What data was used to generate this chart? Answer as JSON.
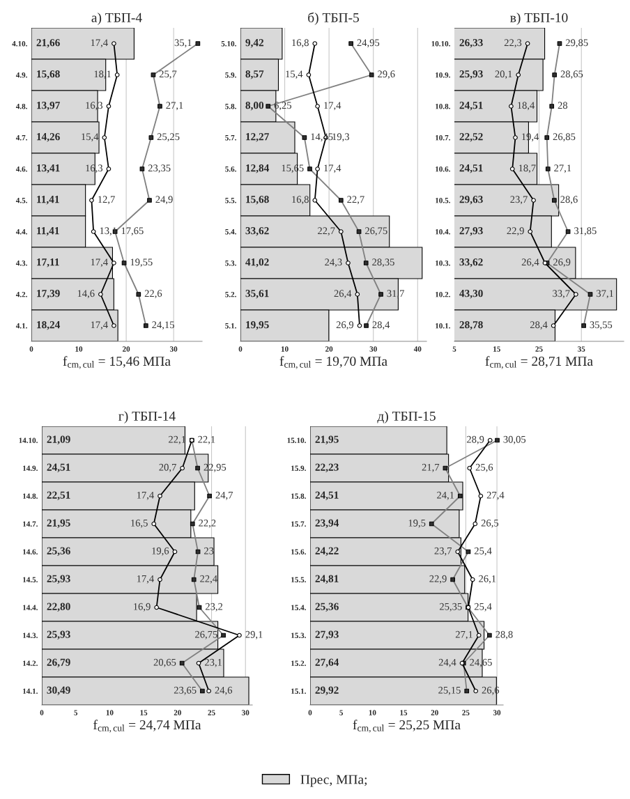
{
  "chart_data": [
    {
      "type": "bar",
      "orientation": "horizontal",
      "title": "а) ТБП-4",
      "xlabel": "f$_{cm,cul}$ = 15,46 МПа",
      "categories": [
        "4.10.",
        "4.9.",
        "4.8.",
        "4.7.",
        "4.6.",
        "4.5.",
        "4.4.",
        "4.3.",
        "4.2.",
        "4.1."
      ],
      "xlim": [
        0,
        36
      ],
      "xticks": [
        0,
        10,
        20,
        30
      ],
      "grid": "x",
      "series": [
        {
          "color": "#d9d9d9",
          "values": [
            21.66,
            15.68,
            13.97,
            14.26,
            13.41,
            11.41,
            11.41,
            17.11,
            17.39,
            18.24
          ],
          "value_labels": [
            "21,66",
            "15,68",
            "13,97",
            "14,26",
            "13,41",
            "11,41",
            "11,41",
            "17,11",
            "17,39",
            "18,24"
          ]
        },
        {
          "type": "line",
          "color": "#808080",
          "marker": "square",
          "values": [
            35.1,
            25.7,
            27.1,
            25.25,
            23.35,
            24.9,
            17.65,
            19.55,
            22.6,
            24.15
          ],
          "value_labels": [
            "35,1",
            "25,7",
            "27,1",
            "25,25",
            "23,35",
            "24,9",
            "17,65",
            "19,55",
            "22,6",
            "24,15"
          ]
        },
        {
          "type": "line",
          "color": "#000000",
          "marker": "circle",
          "values": [
            17.4,
            18.1,
            16.3,
            15.4,
            16.3,
            12.7,
            13.1,
            17.4,
            14.6,
            17.4
          ],
          "value_labels": [
            "17,4",
            "18,1",
            "16,3",
            "15,4",
            "16,3",
            "12,7",
            "13,1",
            "17,4",
            "14,6",
            "17,4"
          ]
        }
      ]
    },
    {
      "type": "bar",
      "orientation": "horizontal",
      "title": "б) ТБП-5",
      "xlabel": "f$_{cm,cul}$ = 19,70 МПа",
      "categories": [
        "5.10.",
        "5.9.",
        "5.8.",
        "5.7.",
        "5.6.",
        "5.5.",
        "5.4.",
        "5.3.",
        "5.2.",
        "5.1."
      ],
      "xlim": [
        0,
        42
      ],
      "xticks": [
        0,
        10,
        20,
        30,
        40
      ],
      "grid": "x",
      "series": [
        {
          "color": "#d9d9d9",
          "values": [
            9.42,
            8.57,
            8.0,
            12.27,
            12.84,
            15.68,
            33.62,
            41.02,
            35.61,
            19.95
          ],
          "value_labels": [
            "9,42",
            "8,57",
            "8,00",
            "12,27",
            "12,84",
            "15,68",
            "33,62",
            "41,02",
            "35,61",
            "19,95"
          ]
        },
        {
          "type": "line",
          "color": "#808080",
          "marker": "square",
          "values": [
            24.95,
            29.6,
            6.25,
            14.45,
            15.65,
            22.7,
            26.75,
            28.35,
            31.7,
            28.4
          ],
          "value_labels": [
            "24,95",
            "29,6",
            "6,25",
            "14,45",
            "15,65",
            "22,7",
            "26,75",
            "28,35",
            "31,7",
            "28,4"
          ]
        },
        {
          "type": "line",
          "color": "#000000",
          "marker": "circle",
          "values": [
            16.8,
            15.4,
            17.4,
            19.3,
            17.4,
            16.8,
            22.7,
            24.3,
            26.4,
            26.9
          ],
          "value_labels": [
            "16,8",
            "15,4",
            "17,4",
            "19,3",
            "17,4",
            "16,8",
            "22,7",
            "24,3",
            "26,4",
            "26,9"
          ]
        }
      ]
    },
    {
      "type": "bar",
      "orientation": "horizontal",
      "title": "в) ТБП-10",
      "xlabel": "f$_{cm,cul}$ = 28,71 МПа",
      "categories": [
        "10.10.",
        "10.9.",
        "10.8.",
        "10.7.",
        "10.6.",
        "10.5.",
        "10.4.",
        "10.3.",
        "10.2.",
        "10.1."
      ],
      "xlim": [
        5,
        45
      ],
      "xticks": [
        5,
        15,
        25,
        35
      ],
      "grid": "x",
      "series": [
        {
          "color": "#d9d9d9",
          "values": [
            26.33,
            25.93,
            24.51,
            22.52,
            24.51,
            29.63,
            27.93,
            33.62,
            43.3,
            28.78
          ],
          "value_labels": [
            "26,33",
            "25,93",
            "24,51",
            "22,52",
            "24,51",
            "29,63",
            "27,93",
            "33,62",
            "43,30",
            "28,78"
          ]
        },
        {
          "type": "line",
          "color": "#808080",
          "marker": "square",
          "values": [
            29.85,
            28.65,
            28,
            26.85,
            27.1,
            28.6,
            31.85,
            26.9,
            37.1,
            35.55
          ],
          "value_labels": [
            "29,85",
            "28,65",
            "28",
            "26,85",
            "27,1",
            "28,6",
            "31,85",
            "26,9",
            "37,1",
            "35,55"
          ]
        },
        {
          "type": "line",
          "color": "#000000",
          "marker": "circle",
          "values": [
            22.3,
            20.1,
            18.4,
            19.4,
            18.7,
            23.7,
            22.9,
            26.4,
            33.7,
            28.4
          ],
          "value_labels": [
            "22,3",
            "20,1",
            "18,4",
            "19,4",
            "18,7",
            "23,7",
            "22,9",
            "26,4",
            "33,7",
            "28,4"
          ]
        }
      ]
    },
    {
      "type": "bar",
      "orientation": "horizontal",
      "title": "г) ТБП-14",
      "xlabel": "f$_{cm,cul}$ = 24,74 МПа",
      "categories": [
        "14.10.",
        "14.9.",
        "14.8.",
        "14.7.",
        "14.6.",
        "14.5.",
        "14.4.",
        "14.3.",
        "14.2.",
        "14.1."
      ],
      "xlim": [
        0,
        31
      ],
      "xticks": [
        0,
        5,
        10,
        15,
        20,
        25,
        30
      ],
      "grid": "x",
      "series": [
        {
          "color": "#d9d9d9",
          "values": [
            21.09,
            24.51,
            22.51,
            21.95,
            25.36,
            25.93,
            22.8,
            25.93,
            26.79,
            30.49
          ],
          "value_labels": [
            "21,09",
            "24,51",
            "22,51",
            "21,95",
            "25,36",
            "25,93",
            "22,80",
            "25,93",
            "26,79",
            "30,49"
          ]
        },
        {
          "type": "line",
          "color": "#808080",
          "marker": "square",
          "values": [
            22.1,
            22.95,
            24.7,
            22.2,
            23,
            22.4,
            23.2,
            26.75,
            20.65,
            23.65
          ],
          "value_labels": [
            "22,1",
            "22,95",
            "24,7",
            "22,2",
            "23",
            "22,4",
            "23,2",
            "26,75",
            "20,65",
            "23,65"
          ]
        },
        {
          "type": "line",
          "color": "#000000",
          "marker": "circle",
          "values": [
            22.1,
            20.7,
            17.4,
            16.5,
            19.6,
            17.4,
            16.9,
            29.1,
            23.1,
            24.6
          ],
          "value_labels": [
            "22,1",
            "20,7",
            "17,4",
            "16,5",
            "19,6",
            "17,4",
            "16,9",
            "29,1",
            "23,1",
            "24,6"
          ]
        }
      ]
    },
    {
      "type": "bar",
      "orientation": "horizontal",
      "title": "д) ТБП-15",
      "xlabel": "f$_{cm,cul}$ = 25,25 МПа",
      "categories": [
        "15.10.",
        "15.9.",
        "15.8.",
        "15.7.",
        "15.6.",
        "15.5.",
        "15.4.",
        "15.3.",
        "15.2.",
        "15.1."
      ],
      "xlim": [
        0,
        31
      ],
      "xticks": [
        0,
        5,
        10,
        15,
        20,
        25,
        30
      ],
      "grid": "x",
      "legend": "bottom",
      "series": [
        {
          "name": "Прес, МПа;",
          "color": "#d9d9d9",
          "values": [
            21.95,
            22.23,
            24.51,
            23.94,
            24.22,
            24.81,
            25.36,
            27.93,
            27.64,
            29.92
          ],
          "value_labels": [
            "21,95",
            "22,23",
            "24,51",
            "23,94",
            "24,22",
            "24,81",
            "25,36",
            "27,93",
            "27,64",
            "29,92"
          ]
        },
        {
          "type": "line",
          "color": "#808080",
          "marker": "square",
          "values": [
            30.05,
            21.7,
            24.1,
            19.5,
            25.4,
            22.9,
            25.35,
            28.8,
            24.65,
            25.15
          ],
          "value_labels": [
            "30,05",
            "21,7",
            "24,1",
            "19,5",
            "25,4",
            "22,9",
            "25,35",
            "28,8",
            "24,65",
            "25,15"
          ]
        },
        {
          "type": "line",
          "color": "#000000",
          "marker": "circle",
          "values": [
            28.9,
            25.6,
            27.4,
            26.5,
            23.7,
            26.1,
            25.4,
            27.1,
            24.4,
            26.6
          ],
          "value_labels": [
            "28,9",
            "25,6",
            "27,4",
            "26,5",
            "23,7",
            "26,1",
            "25,4",
            "27,1",
            "24,4",
            "26,6"
          ]
        }
      ]
    }
  ]
}
